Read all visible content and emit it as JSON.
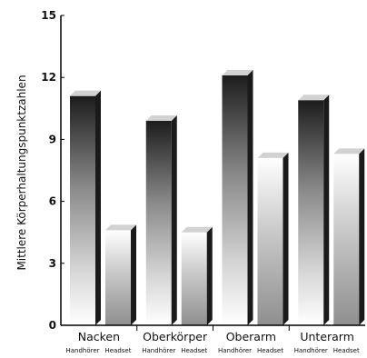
{
  "chart_data": {
    "type": "bar",
    "categories": [
      "Nacken",
      "Oberkörper",
      "Oberarm",
      "Unterarm"
    ],
    "series": [
      {
        "name": "Handhörer",
        "values": [
          11.1,
          9.9,
          12.1,
          10.9
        ]
      },
      {
        "name": "Headset",
        "values": [
          4.6,
          4.5,
          8.1,
          8.3
        ]
      }
    ],
    "series_labels": [
      "Handhörer",
      "Headset"
    ],
    "ylabel": "Mittlere Körperhaltungspunktzahlen",
    "xlabel": "",
    "title": "",
    "ylim": [
      0,
      15
    ],
    "yticks": [
      "0",
      "3",
      "6",
      "9",
      "12",
      "15"
    ],
    "grid": false,
    "legend": "none"
  }
}
